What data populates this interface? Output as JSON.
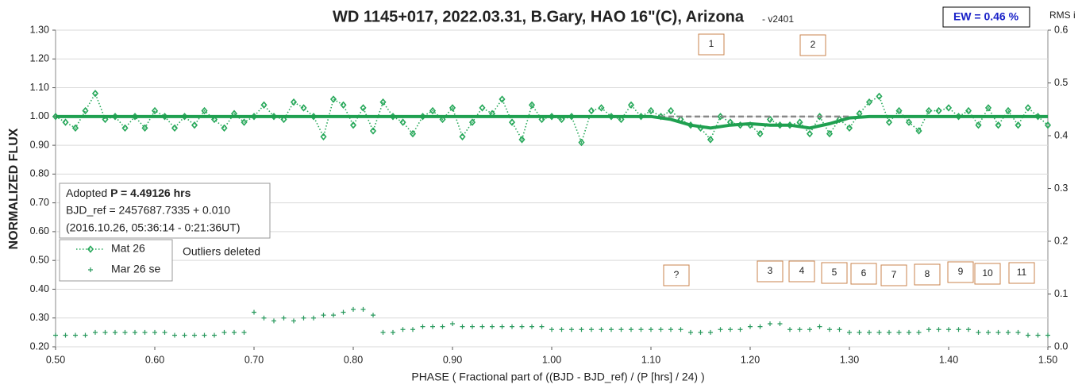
{
  "chart_data": {
    "type": "scatter",
    "title": "WD 1145+017, 2022.03.31, B.Gary, HAO 16\"(C), Arizona",
    "subtitle": "- v2401",
    "badge": "EW = 0.46 %",
    "y2_label": "RMS i",
    "y_label": "NORMALIZED FLUX",
    "x_label": "PHASE ( Fractional part of ((BJD - BJD_ref) / (P [hrs] / 24) )",
    "info": {
      "prefix": "Adopted ",
      "period": "P = 4.49126 hrs",
      "bjd": "BJD_ref = 2457687.7335 + 0.010",
      "date": "(2016.10.26, 05:36:14 - 0:21:36UT)"
    },
    "note": "Outliers deleted",
    "annotations": [
      "1",
      "2",
      "?",
      "3",
      "4",
      "5",
      "6",
      "7",
      "8",
      "9",
      "10",
      "11"
    ],
    "grid": true,
    "xlim": [
      0.5,
      1.5
    ],
    "xticks": [
      {
        "value": 0.5,
        "label": "0.50"
      },
      {
        "value": 0.6,
        "label": "0.60"
      },
      {
        "value": 0.7,
        "label": "0.70"
      },
      {
        "value": 0.8,
        "label": "0.80"
      },
      {
        "value": 0.9,
        "label": "0.90"
      },
      {
        "value": 1.0,
        "label": "1.00"
      },
      {
        "value": 1.1,
        "label": "1.10"
      },
      {
        "value": 1.2,
        "label": "1.20"
      },
      {
        "value": 1.3,
        "label": "1.30"
      },
      {
        "value": 1.4,
        "label": "1.40"
      },
      {
        "value": 1.5,
        "label": "1.50"
      }
    ],
    "ylim": [
      0.2,
      1.3
    ],
    "yticks": [
      {
        "value": 0.2,
        "label": "0.20"
      },
      {
        "value": 0.3,
        "label": "0.30"
      },
      {
        "value": 0.4,
        "label": "0.40"
      },
      {
        "value": 0.5,
        "label": "0.50"
      },
      {
        "value": 0.6,
        "label": "0.60"
      },
      {
        "value": 0.7,
        "label": "0.70"
      },
      {
        "value": 0.8,
        "label": "0.80"
      },
      {
        "value": 0.9,
        "label": "0.90"
      },
      {
        "value": 1.0,
        "label": "1.00"
      },
      {
        "value": 1.1,
        "label": "1.10"
      },
      {
        "value": 1.2,
        "label": "1.20"
      },
      {
        "value": 1.3,
        "label": "1.30"
      }
    ],
    "y2lim": [
      0,
      0.6
    ],
    "y2ticks": [
      {
        "value": 0,
        "label": "0.0"
      },
      0.1,
      0.2,
      0.3,
      0.4,
      0.5,
      0.6
    ],
    "x": [
      0.5,
      0.51,
      0.52,
      0.53,
      0.54,
      0.55,
      0.56,
      0.57,
      0.58,
      0.59,
      0.6,
      0.61,
      0.62,
      0.63,
      0.64,
      0.65,
      0.66,
      0.67,
      0.68,
      0.69,
      0.7,
      0.71,
      0.72,
      0.73,
      0.74,
      0.75,
      0.76,
      0.77,
      0.78,
      0.79,
      0.8,
      0.81,
      0.82,
      0.83,
      0.84,
      0.85,
      0.86,
      0.87,
      0.88,
      0.89,
      0.9,
      0.91,
      0.92,
      0.93,
      0.94,
      0.95,
      0.96,
      0.97,
      0.98,
      0.99,
      1.0,
      1.01,
      1.02,
      1.03,
      1.04,
      1.05,
      1.06,
      1.07,
      1.08,
      1.09,
      1.1,
      1.11,
      1.12,
      1.13,
      1.14,
      1.15,
      1.16,
      1.17,
      1.18,
      1.19,
      1.2,
      1.21,
      1.22,
      1.23,
      1.24,
      1.25,
      1.26,
      1.27,
      1.28,
      1.29,
      1.3,
      1.31,
      1.32,
      1.33,
      1.34,
      1.35,
      1.36,
      1.37,
      1.38,
      1.39,
      1.4,
      1.41,
      1.42,
      1.43,
      1.44,
      1.45,
      1.46,
      1.47,
      1.48,
      1.49,
      1.5
    ],
    "series": [
      {
        "name": "Mat 26",
        "color": "#27a85a",
        "marker": "diamond",
        "line": "dotted",
        "values": [
          1.0,
          0.98,
          0.96,
          1.02,
          1.08,
          0.99,
          1.0,
          0.96,
          1.0,
          0.96,
          1.02,
          1.0,
          0.96,
          1.0,
          0.97,
          1.02,
          0.99,
          0.96,
          1.01,
          0.98,
          1.0,
          1.04,
          1.0,
          0.99,
          1.05,
          1.03,
          1.0,
          0.93,
          1.06,
          1.04,
          0.97,
          1.03,
          0.95,
          1.05,
          1.0,
          0.98,
          0.94,
          1.0,
          1.02,
          0.99,
          1.03,
          0.93,
          0.98,
          1.03,
          1.01,
          1.06,
          0.98,
          0.92,
          1.04,
          0.99,
          1.0,
          0.99,
          1.0,
          0.91,
          1.02,
          1.03,
          1.0,
          0.99,
          1.04,
          1.0,
          1.02,
          1.0,
          1.02,
          0.99,
          0.97,
          0.96,
          0.92,
          1.0,
          0.98,
          0.97,
          0.97,
          0.94,
          0.99,
          0.97,
          0.97,
          0.98,
          0.94,
          1.0,
          0.94,
          0.99,
          0.96,
          1.01,
          1.05,
          1.07,
          0.98,
          1.02,
          0.98,
          0.95,
          1.02,
          1.02,
          1.03,
          1.0,
          1.02,
          0.97,
          1.03,
          0.97,
          1.02,
          0.97,
          1.03,
          1.0,
          0.97
        ]
      },
      {
        "name": "Mar 26 se",
        "color": "#2a9a5e",
        "marker": "plus",
        "line": "none",
        "values": [
          0.24,
          0.24,
          0.24,
          0.24,
          0.25,
          0.25,
          0.25,
          0.25,
          0.25,
          0.25,
          0.25,
          0.25,
          0.24,
          0.24,
          0.24,
          0.24,
          0.24,
          0.25,
          0.25,
          0.25,
          0.32,
          0.3,
          0.29,
          0.3,
          0.29,
          0.3,
          0.3,
          0.31,
          0.31,
          0.32,
          0.33,
          0.33,
          0.31,
          0.25,
          0.25,
          0.26,
          0.26,
          0.27,
          0.27,
          0.27,
          0.28,
          0.27,
          0.27,
          0.27,
          0.27,
          0.27,
          0.27,
          0.27,
          0.27,
          0.27,
          0.26,
          0.26,
          0.26,
          0.26,
          0.26,
          0.26,
          0.26,
          0.26,
          0.26,
          0.26,
          0.26,
          0.26,
          0.26,
          0.26,
          0.25,
          0.25,
          0.25,
          0.26,
          0.26,
          0.26,
          0.27,
          0.27,
          0.28,
          0.28,
          0.26,
          0.26,
          0.26,
          0.27,
          0.26,
          0.26,
          0.25,
          0.25,
          0.25,
          0.25,
          0.25,
          0.25,
          0.25,
          0.25,
          0.26,
          0.26,
          0.26,
          0.26,
          0.26,
          0.25,
          0.25,
          0.25,
          0.25,
          0.25,
          0.24,
          0.24,
          0.24
        ]
      },
      {
        "color": "#888888",
        "marker": "none",
        "line": "dashed",
        "x": [
          1.1,
          1.3
        ],
        "values": [
          1.0,
          1.0
        ]
      },
      {
        "color": "#1fa050",
        "marker": "none",
        "line": "thick",
        "x": [
          0.5,
          1.1,
          1.12,
          1.14,
          1.16,
          1.18,
          1.2,
          1.22,
          1.24,
          1.26,
          1.28,
          1.3,
          1.32,
          1.5
        ],
        "values": [
          1.0,
          1.0,
          0.99,
          0.97,
          0.96,
          0.97,
          0.975,
          0.97,
          0.97,
          0.96,
          0.975,
          0.995,
          1.0,
          1.0
        ]
      }
    ]
  }
}
